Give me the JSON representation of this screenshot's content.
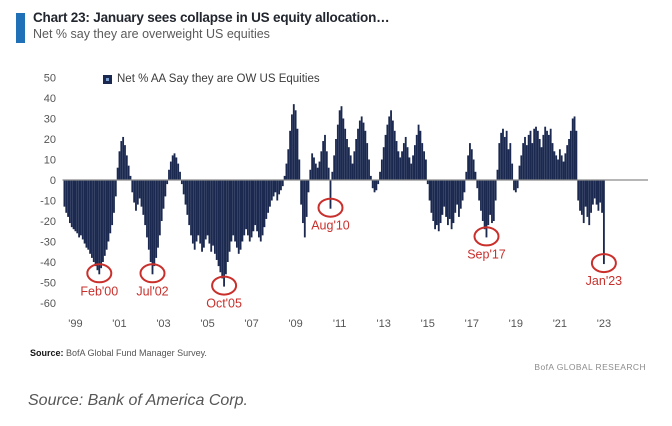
{
  "header": {
    "title": "Chart 23: January sees collapse in US equity allocation…",
    "subtitle": "Net % say they are overweight US equities",
    "accent_color": "#2070b8"
  },
  "legend": {
    "label": "Net % AA Say they are OW US Equities",
    "marker_color": "#1b2950"
  },
  "chart_data": {
    "type": "bar",
    "title": "Net % AA Say they are OW US Equities",
    "frequency": "monthly",
    "start_month": "1998-07",
    "end_month": "2023-01",
    "ylim": [
      -60,
      50
    ],
    "yticks": [
      50,
      40,
      30,
      20,
      10,
      0,
      -10,
      -20,
      -30,
      -40,
      -50,
      -60
    ],
    "xtick_labels": [
      "'99",
      "'01",
      "'03",
      "'05",
      "'07",
      "'09",
      "'11",
      "'13",
      "'15",
      "'17",
      "'19",
      "'21",
      "'23"
    ],
    "grid": false,
    "legend_position": "top-left",
    "bar_color": "#1b2950",
    "zero_line_color": "#8a8a8a",
    "annotation_color": "#c9302c",
    "values": [
      -13,
      -16,
      -18,
      -21,
      -23,
      -24,
      -25,
      -26,
      -28,
      -27,
      -29,
      -31,
      -33,
      -34,
      -36,
      -38,
      -40,
      -42,
      -44,
      -46,
      -43,
      -40,
      -37,
      -34,
      -30,
      -26,
      -22,
      -16,
      -8,
      6,
      14,
      19,
      21,
      17,
      12,
      7,
      2,
      -6,
      -11,
      -15,
      -12,
      -9,
      -13,
      -17,
      -22,
      -28,
      -34,
      -40,
      -46,
      -42,
      -38,
      -33,
      -27,
      -20,
      -14,
      -8,
      -2,
      5,
      9,
      12,
      13,
      11,
      8,
      4,
      -2,
      -7,
      -12,
      -17,
      -22,
      -27,
      -31,
      -34,
      -30,
      -27,
      -31,
      -35,
      -33,
      -29,
      -27,
      -31,
      -35,
      -32,
      -36,
      -39,
      -42,
      -45,
      -48,
      -52,
      -46,
      -40,
      -35,
      -30,
      -27,
      -30,
      -33,
      -36,
      -34,
      -30,
      -27,
      -24,
      -27,
      -30,
      -28,
      -25,
      -22,
      -25,
      -28,
      -30,
      -27,
      -23,
      -19,
      -16,
      -13,
      -10,
      -8,
      -6,
      -10,
      -7,
      -5,
      -3,
      2,
      8,
      15,
      24,
      32,
      37,
      34,
      25,
      10,
      -12,
      -21,
      -28,
      -18,
      -6,
      5,
      13,
      11,
      8,
      6,
      9,
      14,
      19,
      22,
      14,
      6,
      -14,
      4,
      12,
      20,
      27,
      34,
      36,
      30,
      25,
      20,
      16,
      12,
      8,
      14,
      20,
      25,
      29,
      31,
      28,
      24,
      18,
      10,
      2,
      -4,
      -6,
      -5,
      -2,
      4,
      10,
      16,
      22,
      27,
      31,
      34,
      29,
      24,
      19,
      14,
      11,
      14,
      18,
      21,
      16,
      11,
      8,
      12,
      17,
      22,
      27,
      24,
      18,
      14,
      10,
      -2,
      -10,
      -16,
      -20,
      -24,
      -22,
      -25,
      -21,
      -17,
      -13,
      -18,
      -22,
      -19,
      -24,
      -21,
      -16,
      -12,
      -18,
      -14,
      -10,
      -6,
      4,
      12,
      18,
      15,
      10,
      4,
      -4,
      -10,
      -15,
      -20,
      -24,
      -28,
      -22,
      -17,
      -21,
      -20,
      -10,
      5,
      18,
      23,
      25,
      21,
      24,
      15,
      18,
      8,
      -5,
      -6,
      -4,
      7,
      12,
      18,
      21,
      17,
      22,
      24,
      18,
      25,
      26,
      24,
      20,
      16,
      22,
      26,
      24,
      22,
      25,
      18,
      14,
      12,
      10,
      15,
      12,
      9,
      13,
      17,
      20,
      24,
      30,
      31,
      24,
      -10,
      -15,
      -17,
      -21,
      -13,
      -18,
      -22,
      -16,
      -12,
      -9,
      -12,
      -15,
      -11,
      -16,
      -41
    ],
    "annotations": [
      {
        "label": "Feb'00",
        "index": 19,
        "value": -46
      },
      {
        "label": "Jul'02",
        "index": 48,
        "value": -46
      },
      {
        "label": "Oct'05",
        "index": 87,
        "value": -52
      },
      {
        "label": "Aug'10",
        "index": 145,
        "value": -14
      },
      {
        "label": "Sep'17",
        "index": 230,
        "value": -28
      },
      {
        "label": "Jan'23",
        "index": 294,
        "value": -41
      }
    ]
  },
  "footer": {
    "source_label": "Source:",
    "source_text": " BofA Global Fund Manager Survey.",
    "brand": "BofA GLOBAL RESEARCH"
  },
  "caption": "Source: Bank of America Corp."
}
